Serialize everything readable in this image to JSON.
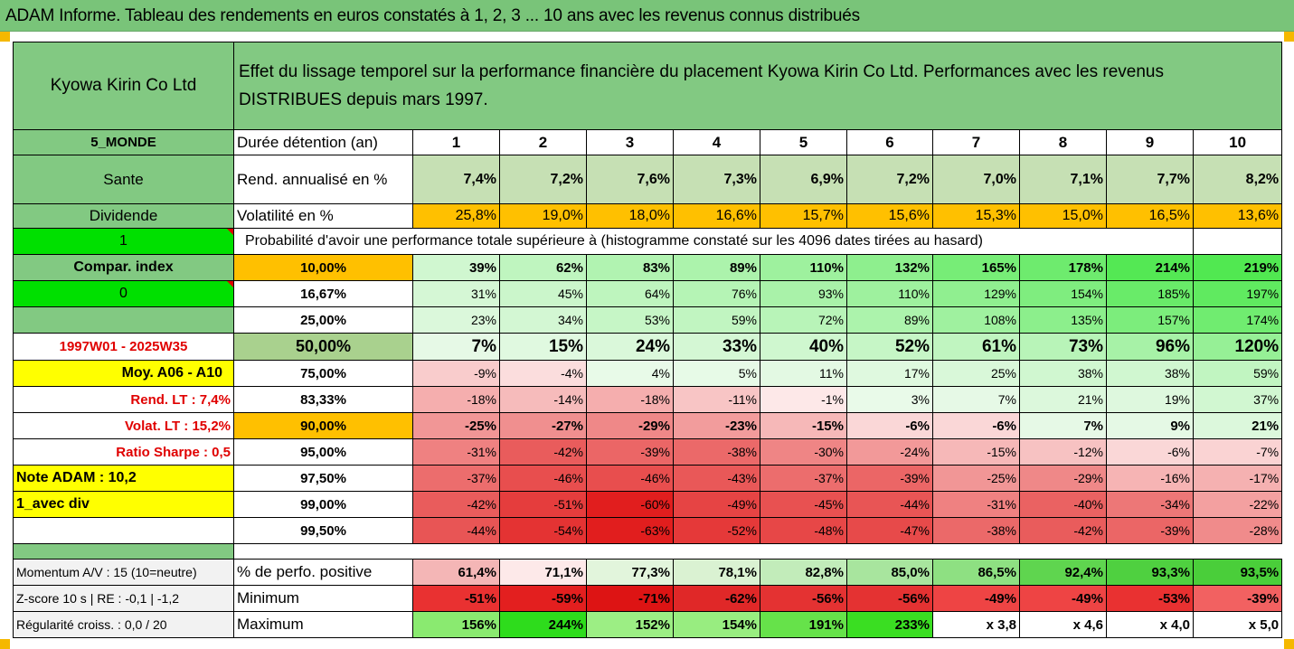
{
  "banner": {
    "title": "ADAM Informe. Tableau des rendements en euros constatés à 1, 2, 3 ... 10 ans avec les revenus connus distribués"
  },
  "header": {
    "company": "Kyowa Kirin Co Ltd",
    "description": "Effet du lissage temporel sur la performance financière du placement Kyowa Kirin Co Ltd. Performances avec les revenus DISTRIBUES depuis mars 1997."
  },
  "left": {
    "zone": "5_MONDE",
    "sector": "Sante",
    "type": "Dividende",
    "flag1": "1",
    "compar_index": "Compar. index",
    "flag0": "0",
    "period": "1997W01 - 2025W35",
    "moy": "Moy. A06 - A10",
    "rend_lt": "Rend. LT :   7,4%",
    "volat_lt": "Volat. LT :   15,2%",
    "sharpe": "Ratio Sharpe :   0,5",
    "note": "Note ADAM : 10,2",
    "div": "1_avec div",
    "momentum": "Momentum A/V : 15 (10=neutre)",
    "zscore": "Z-score 10 s  |  RE : -0,1  | -1,2",
    "regularite": "Régularité croiss. : 0,0 / 20"
  },
  "labels": {
    "duree": "Durée détention (an)",
    "rend": "Rend. annualisé en %",
    "volat": "Volatilité en %",
    "proba": "Probabilité d'avoir une performance totale supérieure à (histogramme constaté sur les 4096 dates tirées au hasard)",
    "perf_pos": "% de perfo. positive",
    "minimum": "Minimum",
    "maximum": "Maximum"
  },
  "years": [
    "1",
    "2",
    "3",
    "4",
    "5",
    "6",
    "7",
    "8",
    "9",
    "10"
  ],
  "rend": [
    "7,4%",
    "7,2%",
    "7,6%",
    "7,3%",
    "6,9%",
    "7,2%",
    "7,0%",
    "7,1%",
    "7,7%",
    "8,2%"
  ],
  "volat": [
    "25,8%",
    "19,0%",
    "18,0%",
    "16,6%",
    "15,7%",
    "15,6%",
    "15,3%",
    "15,0%",
    "16,5%",
    "13,6%"
  ],
  "proba_rows": [
    {
      "pct": "10,00%",
      "values": [
        "39%",
        "62%",
        "83%",
        "89%",
        "110%",
        "132%",
        "165%",
        "178%",
        "214%",
        "219%"
      ]
    },
    {
      "pct": "16,67%",
      "values": [
        "31%",
        "45%",
        "64%",
        "76%",
        "93%",
        "110%",
        "129%",
        "154%",
        "185%",
        "197%"
      ]
    },
    {
      "pct": "25,00%",
      "values": [
        "23%",
        "34%",
        "53%",
        "59%",
        "72%",
        "89%",
        "108%",
        "135%",
        "157%",
        "174%"
      ]
    },
    {
      "pct": "50,00%",
      "values": [
        "7%",
        "15%",
        "24%",
        "33%",
        "40%",
        "52%",
        "61%",
        "73%",
        "96%",
        "120%"
      ]
    },
    {
      "pct": "75,00%",
      "values": [
        "-9%",
        "-4%",
        "4%",
        "5%",
        "11%",
        "17%",
        "25%",
        "38%",
        "38%",
        "59%"
      ]
    },
    {
      "pct": "83,33%",
      "values": [
        "-18%",
        "-14%",
        "-18%",
        "-11%",
        "-1%",
        "3%",
        "7%",
        "21%",
        "19%",
        "37%"
      ]
    },
    {
      "pct": "90,00%",
      "values": [
        "-25%",
        "-27%",
        "-29%",
        "-23%",
        "-15%",
        "-6%",
        "-6%",
        "7%",
        "9%",
        "21%"
      ]
    },
    {
      "pct": "95,00%",
      "values": [
        "-31%",
        "-42%",
        "-39%",
        "-38%",
        "-30%",
        "-24%",
        "-15%",
        "-12%",
        "-6%",
        "-7%"
      ]
    },
    {
      "pct": "97,50%",
      "values": [
        "-37%",
        "-46%",
        "-46%",
        "-43%",
        "-37%",
        "-39%",
        "-25%",
        "-29%",
        "-16%",
        "-17%"
      ]
    },
    {
      "pct": "99,00%",
      "values": [
        "-42%",
        "-51%",
        "-60%",
        "-49%",
        "-45%",
        "-44%",
        "-31%",
        "-40%",
        "-34%",
        "-22%"
      ]
    },
    {
      "pct": "99,50%",
      "values": [
        "-44%",
        "-54%",
        "-63%",
        "-52%",
        "-48%",
        "-47%",
        "-38%",
        "-42%",
        "-39%",
        "-28%"
      ]
    }
  ],
  "perf_pos": [
    "61,4%",
    "71,1%",
    "77,3%",
    "78,1%",
    "82,8%",
    "85,0%",
    "86,5%",
    "92,4%",
    "93,3%",
    "93,5%"
  ],
  "minimum": [
    "-51%",
    "-59%",
    "-71%",
    "-62%",
    "-56%",
    "-56%",
    "-49%",
    "-49%",
    "-53%",
    "-39%"
  ],
  "maximum": [
    "156%",
    "244%",
    "152%",
    "154%",
    "191%",
    "233%",
    "x 3,8",
    "x 4,6",
    "x 4,0",
    "x 5,0"
  ],
  "colors": {
    "banner": "#79c479",
    "label_green": "#82c982",
    "bright_green": "#00e000",
    "orange": "#ffc000",
    "yellow": "#ffff00",
    "light_olive": "#c6e0b4",
    "red_strong": "#ff0000"
  }
}
